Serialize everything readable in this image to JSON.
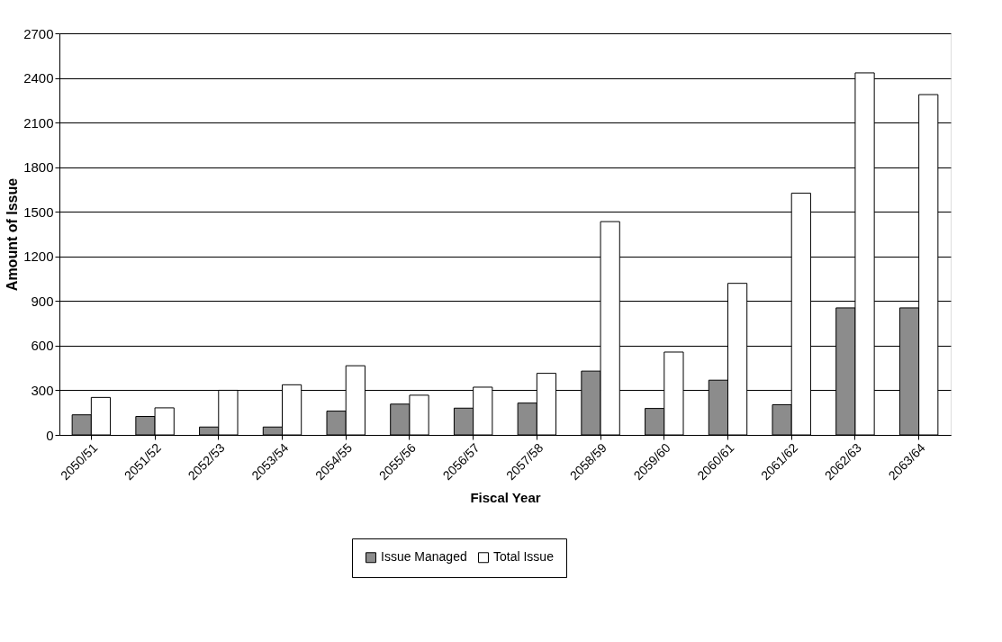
{
  "chart_data": {
    "type": "bar",
    "xlabel": "Fiscal Year",
    "ylabel": "Amount of Issue",
    "categories": [
      "2050/51",
      "2051/52",
      "2052/53",
      "2053/54",
      "2054/55",
      "2055/56",
      "2056/57",
      "2057/58",
      "2058/59",
      "2059/60",
      "2060/61",
      "2061/62",
      "2062/63",
      "2063/64"
    ],
    "series": [
      {
        "name": "Issue Managed",
        "color": "#8c8c8c",
        "values": [
          135,
          124,
          53,
          53,
          160,
          207,
          180,
          214,
          429,
          178,
          368,
          203,
          854,
          854
        ]
      },
      {
        "name": "Total Issue",
        "color": "#ffffff",
        "values": [
          252,
          182,
          300,
          337,
          465,
          267,
          321,
          414,
          1434,
          557,
          1019,
          1625,
          2434,
          2288
        ]
      }
    ],
    "ylim": [
      0,
      2700
    ],
    "yticks": [
      0,
      300,
      600,
      900,
      1200,
      1500,
      1800,
      2100,
      2400,
      2700
    ],
    "grid": "y",
    "legend": "bottom"
  }
}
